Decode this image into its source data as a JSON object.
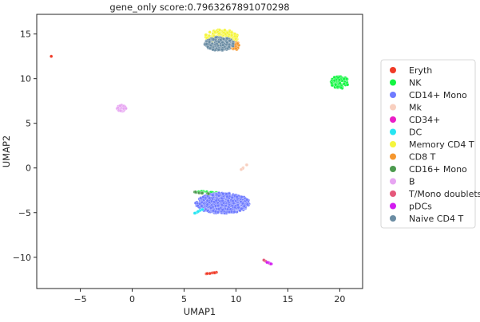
{
  "chart_data": {
    "type": "scatter",
    "title": "gene_only score:0.7963267891070298",
    "xlabel": "UMAP1",
    "ylabel": "UMAP2",
    "xlim": [
      -9.2,
      22.2
    ],
    "ylim": [
      -13.5,
      17.2
    ],
    "xticks": [
      -5,
      0,
      5,
      10,
      15,
      20
    ],
    "yticks": [
      -10,
      -5,
      0,
      5,
      10,
      15
    ],
    "grid": false,
    "legend_position": "right",
    "series": [
      {
        "name": "Eryth",
        "color": "#f03a27",
        "clusters": [
          {
            "shape": "line",
            "x1": 6.9,
            "y1": -11.9,
            "x2": 8.1,
            "y2": -11.7,
            "n": 10,
            "spread": 0.06
          },
          {
            "shape": "point",
            "x": -7.8,
            "y": 12.5
          }
        ]
      },
      {
        "name": "NK",
        "color": "#13f542",
        "clusters": [
          {
            "shape": "ellipse",
            "cx": 20.0,
            "cy": 9.6,
            "rx": 0.85,
            "ry": 0.7,
            "n": 90
          },
          {
            "shape": "line",
            "x1": 6.0,
            "y1": -2.6,
            "x2": 8.2,
            "y2": -2.8,
            "n": 14,
            "spread": 0.12
          }
        ]
      },
      {
        "name": "CD14+ Mono",
        "color": "#6f7bff",
        "clusters": [
          {
            "shape": "ellipse",
            "cx": 8.7,
            "cy": -3.95,
            "rx": 2.6,
            "ry": 1.15,
            "n": 650
          }
        ]
      },
      {
        "name": "Mk",
        "color": "#f8cfbf",
        "clusters": [
          {
            "shape": "line",
            "x1": 10.5,
            "y1": -0.2,
            "x2": 11.1,
            "y2": 0.4,
            "n": 6,
            "spread": 0.05
          }
        ]
      },
      {
        "name": "CD34+",
        "color": "#ea1ec6",
        "clusters": []
      },
      {
        "name": "DC",
        "color": "#27e5f2",
        "clusters": [
          {
            "shape": "line",
            "x1": 6.0,
            "y1": -5.1,
            "x2": 6.8,
            "y2": -4.6,
            "n": 8,
            "spread": 0.08
          }
        ]
      },
      {
        "name": "Memory CD4 T",
        "color": "#f5f53d",
        "clusters": [
          {
            "shape": "ellipse",
            "cx": 8.6,
            "cy": 14.6,
            "rx": 1.6,
            "ry": 0.9,
            "n": 180
          }
        ]
      },
      {
        "name": "CD8 T",
        "color": "#f5972e",
        "clusters": [
          {
            "shape": "ellipse",
            "cx": 9.8,
            "cy": 13.7,
            "rx": 0.6,
            "ry": 0.5,
            "n": 30
          }
        ]
      },
      {
        "name": "CD16+ Mono",
        "color": "#4d9a4f",
        "clusters": [
          {
            "shape": "line",
            "x1": 6.0,
            "y1": -2.7,
            "x2": 7.6,
            "y2": -2.9,
            "n": 10,
            "spread": 0.1
          }
        ]
      },
      {
        "name": "B",
        "color": "#e7a5f2",
        "clusters": [
          {
            "shape": "ellipse",
            "cx": -1.0,
            "cy": 6.7,
            "rx": 0.45,
            "ry": 0.35,
            "n": 40
          }
        ]
      },
      {
        "name": "T/Mono doublets",
        "color": "#e5587a",
        "clusters": [
          {
            "shape": "line",
            "x1": 12.7,
            "y1": -10.3,
            "x2": 13.5,
            "y2": -10.9,
            "n": 6,
            "spread": 0.06
          }
        ]
      },
      {
        "name": "pDCs",
        "color": "#d21cf0",
        "clusters": [
          {
            "shape": "line",
            "x1": 12.9,
            "y1": -10.5,
            "x2": 13.5,
            "y2": -10.8,
            "n": 5,
            "spread": 0.05
          }
        ]
      },
      {
        "name": "Naive CD4 T",
        "color": "#6a8ca3",
        "clusters": [
          {
            "shape": "ellipse",
            "cx": 8.4,
            "cy": 13.9,
            "rx": 1.4,
            "ry": 0.75,
            "n": 180
          }
        ]
      }
    ]
  }
}
